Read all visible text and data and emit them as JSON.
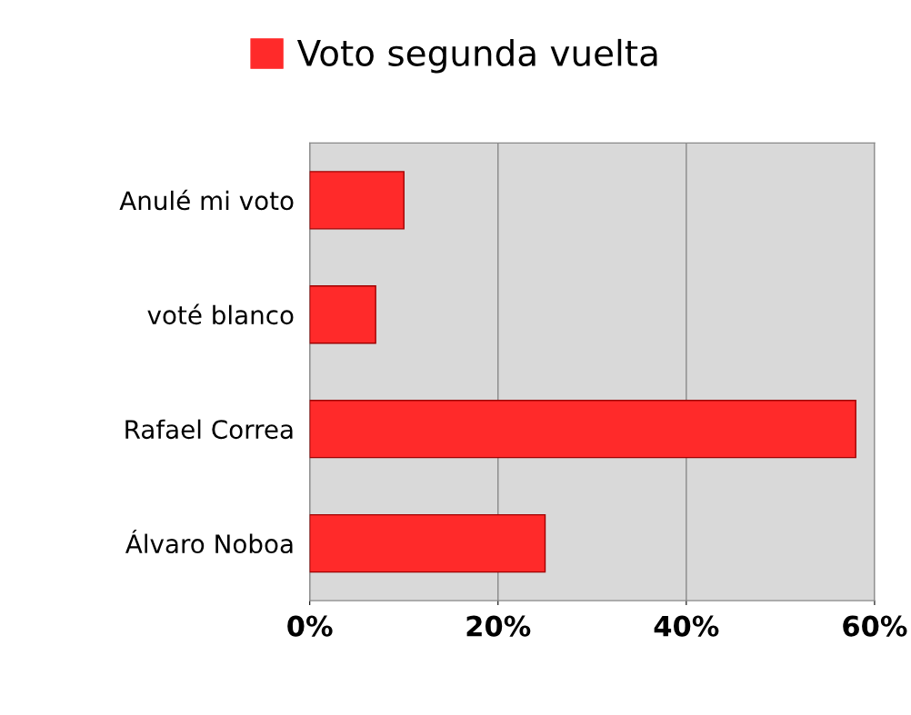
{
  "chart_data": {
    "type": "bar",
    "orientation": "horizontal",
    "categories": [
      "Anulé mi voto",
      "voté blanco",
      "Rafael Correa",
      "Álvaro Noboa"
    ],
    "series": [
      {
        "name": "Voto segunda vuelta",
        "color": "#ff2a2a",
        "values": [
          10,
          7,
          58,
          25
        ]
      }
    ],
    "xlim": [
      0,
      60
    ],
    "xticks": [
      {
        "value": 0,
        "label": "0%"
      },
      {
        "value": 20,
        "label": "20%"
      },
      {
        "value": 40,
        "label": "40%"
      },
      {
        "value": 60,
        "label": "60%"
      }
    ],
    "grid": "x",
    "legend": "top"
  }
}
